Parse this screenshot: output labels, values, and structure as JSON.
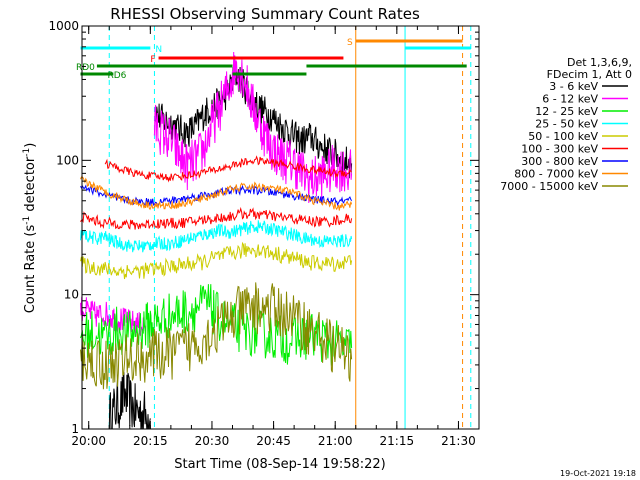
{
  "chart_data": {
    "type": "line",
    "title": "RHESSI Observing Summary Count Rates",
    "xlabel": "Start Time (08-Sep-14 19:58:22)",
    "ylabel": "Count Rate (s",
    "ylabel_sup": "-1",
    "ylabel_tail": " detector",
    "ylabel_end": ")",
    "date_stamp": "19-Oct-2021 19:18",
    "y_scale": "log",
    "ylim": [
      1,
      1000
    ],
    "xlim": [
      "19:58:22",
      "21:35:00"
    ],
    "x_ticks": [
      "20:00",
      "20:15",
      "20:30",
      "20:45",
      "21:00",
      "21:15",
      "21:30"
    ],
    "y_ticks": [
      "1",
      "10",
      "100",
      "1000"
    ],
    "grid": false,
    "legend": {
      "placement": "right",
      "header_lines": [
        "Det 1,3,6,9,",
        "FDecim 1, Att 0"
      ],
      "entries": [
        {
          "label": "3 - 6 keV",
          "color": "#000000"
        },
        {
          "label": "6 - 12 keV",
          "color": "#ff00ff"
        },
        {
          "label": "12 - 25 keV",
          "color": "#00ee00"
        },
        {
          "label": "25 - 50 keV",
          "color": "#00ffff"
        },
        {
          "label": "50 - 100 keV",
          "color": "#cccc00"
        },
        {
          "label": "100 - 300 keV",
          "color": "#ff0000"
        },
        {
          "label": "300 - 800 keV",
          "color": "#0000ff"
        },
        {
          "label": "800 - 7000 keV",
          "color": "#ff8800"
        },
        {
          "label": "7000 - 15000 keV",
          "color": "#888800"
        }
      ]
    },
    "series": [
      {
        "color": "#000000",
        "x": [
          "20:05",
          "20:07",
          "20:09",
          "20:11",
          "20:13",
          "20:15"
        ],
        "y": [
          1.2,
          1.5,
          1.8,
          1.4,
          1.3,
          1.2
        ],
        "jitter": 0.2
      },
      {
        "color": "#000000",
        "x": [
          "20:16",
          "20:18",
          "20:20",
          "20:22",
          "20:24",
          "20:26",
          "20:28",
          "20:30",
          "20:32",
          "20:34",
          "20:36",
          "20:38",
          "20:40",
          "20:42",
          "20:44",
          "20:46",
          "20:48",
          "20:50",
          "20:52",
          "20:54",
          "20:56",
          "20:58",
          "21:00",
          "21:02",
          "21:04"
        ],
        "y": [
          230,
          200,
          190,
          170,
          160,
          180,
          220,
          250,
          270,
          330,
          440,
          350,
          280,
          240,
          220,
          190,
          170,
          150,
          140,
          150,
          130,
          120,
          110,
          100,
          95
        ],
        "jitter": 0.12
      },
      {
        "color": "#ff00ff",
        "x": [
          "19:58",
          "20:00",
          "20:02",
          "20:04",
          "20:06",
          "20:08",
          "20:10",
          "20:12",
          "20:14"
        ],
        "y": [
          8,
          7.5,
          7,
          7.2,
          6.8,
          6.5,
          6.2,
          6.0,
          5.8
        ],
        "jitter": 0.1
      },
      {
        "color": "#ff00ff",
        "x": [
          "20:16",
          "20:18",
          "20:20",
          "20:22",
          "20:24",
          "20:26",
          "20:28",
          "20:30",
          "20:32",
          "20:34",
          "20:36",
          "20:38",
          "20:40",
          "20:42",
          "20:44",
          "20:46",
          "20:48",
          "20:50",
          "20:52",
          "20:54",
          "20:56",
          "20:58",
          "21:00",
          "21:02",
          "21:04"
        ],
        "y": [
          180,
          160,
          140,
          110,
          90,
          100,
          120,
          180,
          250,
          350,
          530,
          400,
          250,
          180,
          130,
          110,
          100,
          95,
          80,
          70,
          75,
          80,
          90,
          85,
          80
        ],
        "jitter": 0.18
      },
      {
        "color": "#00ee00",
        "x": [
          "19:58",
          "20:01",
          "20:04",
          "20:07",
          "20:10",
          "20:13",
          "20:15",
          "20:17",
          "20:20",
          "20:23",
          "20:26",
          "20:29",
          "20:31",
          "20:34",
          "20:37",
          "20:40",
          "20:43",
          "20:46",
          "20:49",
          "20:52",
          "20:55",
          "20:58",
          "21:01",
          "21:04"
        ],
        "y": [
          5,
          5.2,
          4.8,
          5.5,
          5,
          5.8,
          6,
          6.5,
          7,
          7.5,
          8,
          8.5,
          7,
          6,
          5.5,
          5.2,
          5,
          4.8,
          4.5,
          4.8,
          5,
          4.5,
          4.2,
          4
        ],
        "jitter": 0.18
      },
      {
        "color": "#00ffff",
        "x": [
          "19:58",
          "20:00",
          "20:02",
          "20:04"
        ],
        "y": [
          28,
          27,
          26,
          27
        ],
        "jitter": 0.05
      },
      {
        "color": "#00ffff",
        "x": [
          "20:04",
          "20:06",
          "20:08",
          "20:10",
          "20:12",
          "20:14",
          "20:16",
          "20:18",
          "20:20",
          "20:22",
          "20:24",
          "20:26",
          "20:28",
          "20:30",
          "20:32",
          "20:34",
          "20:36",
          "20:38",
          "20:40",
          "20:42",
          "20:44",
          "20:46",
          "20:48",
          "20:50",
          "20:52",
          "20:54",
          "20:56",
          "20:58",
          "21:00",
          "21:02",
          "21:04"
        ],
        "y": [
          27,
          25,
          24,
          23,
          23,
          23,
          24,
          24,
          24,
          25,
          26,
          27,
          28,
          29,
          30,
          29,
          30,
          31,
          32,
          32,
          31,
          30,
          29,
          28,
          26,
          26,
          25,
          25,
          25,
          25,
          26
        ],
        "jitter": 0.05
      },
      {
        "color": "#cccc00",
        "x": [
          "19:58",
          "20:01",
          "20:04",
          "20:07",
          "20:10",
          "20:13",
          "20:16",
          "20:19",
          "20:22",
          "20:25",
          "20:28",
          "20:31",
          "20:34",
          "20:37",
          "20:40",
          "20:43",
          "20:46",
          "20:49",
          "20:52",
          "20:55",
          "20:58",
          "21:01",
          "21:04"
        ],
        "y": [
          17,
          16,
          15.5,
          15,
          15,
          15,
          15.5,
          16,
          16.5,
          17,
          17.5,
          19,
          20,
          21,
          22,
          21,
          20,
          19,
          18,
          17,
          17,
          17,
          18
        ],
        "jitter": 0.06
      },
      {
        "color": "#ff0000",
        "x": [
          "19:58",
          "20:01",
          "20:04",
          "20:07",
          "20:10",
          "20:13",
          "20:16",
          "20:19",
          "20:22",
          "20:25",
          "20:28",
          "20:31",
          "20:34",
          "20:37",
          "20:40",
          "20:43",
          "20:46",
          "20:49",
          "20:52",
          "20:55",
          "20:58",
          "21:01",
          "21:04"
        ],
        "y": [
          38,
          36,
          34,
          34,
          33,
          33,
          34,
          34,
          34,
          35,
          36,
          37,
          38,
          40,
          40,
          39,
          38,
          37,
          36,
          35,
          35,
          36,
          37
        ],
        "jitter": 0.04
      },
      {
        "color": "#ff0000",
        "x": [
          "20:04",
          "20:07",
          "20:10",
          "20:13",
          "20:16",
          "20:19",
          "20:22",
          "20:25",
          "20:28",
          "20:31",
          "20:34",
          "20:37",
          "20:40",
          "20:43",
          "20:46",
          "20:49",
          "20:52",
          "20:55",
          "20:58",
          "21:01",
          "21:04"
        ],
        "y": [
          95,
          88,
          82,
          78,
          76,
          75,
          76,
          78,
          82,
          85,
          90,
          95,
          100,
          98,
          95,
          92,
          88,
          85,
          82,
          80,
          82
        ],
        "jitter": 0.03
      },
      {
        "color": "#0000ff",
        "x": [
          "19:58",
          "20:01",
          "20:04",
          "20:07",
          "20:10",
          "20:13",
          "20:16",
          "20:19",
          "20:22",
          "20:25",
          "20:28",
          "20:31",
          "20:34",
          "20:37",
          "20:40",
          "20:43",
          "20:46",
          "20:49",
          "20:52",
          "20:55",
          "20:58",
          "21:01",
          "21:04"
        ],
        "y": [
          65,
          60,
          55,
          52,
          50,
          49,
          49,
          50,
          51,
          53,
          55,
          57,
          59,
          60,
          60,
          59,
          57,
          55,
          53,
          51,
          50,
          49,
          50
        ],
        "jitter": 0.03
      },
      {
        "color": "#ff8800",
        "x": [
          "19:58",
          "20:01",
          "20:04",
          "20:07",
          "20:10",
          "20:13",
          "20:16",
          "20:19",
          "20:22",
          "20:25",
          "20:28",
          "20:31",
          "20:34",
          "20:37",
          "20:40",
          "20:43",
          "20:46",
          "20:49",
          "20:52",
          "20:55",
          "20:58",
          "21:01",
          "21:04"
        ],
        "y": [
          72,
          65,
          58,
          54,
          50,
          47,
          46,
          46,
          47,
          49,
          52,
          56,
          60,
          63,
          64,
          63,
          61,
          58,
          54,
          50,
          47,
          45,
          47
        ],
        "jitter": 0.03
      },
      {
        "color": "#888800",
        "x": [
          "19:58",
          "20:01",
          "20:04",
          "20:07",
          "20:10",
          "20:13",
          "20:16",
          "20:19",
          "20:22",
          "20:25",
          "20:28",
          "20:31",
          "20:34",
          "20:37",
          "20:40",
          "20:43",
          "20:46",
          "20:49",
          "20:52",
          "20:55",
          "20:58",
          "21:01",
          "21:04"
        ],
        "y": [
          3.5,
          3.2,
          3,
          3.2,
          3.3,
          3.4,
          3.5,
          3.6,
          3.8,
          4.2,
          4.8,
          5.5,
          6.5,
          7.5,
          8,
          8,
          7.5,
          7,
          6,
          5.2,
          4.5,
          3.8,
          3.3
        ],
        "jitter": 0.2
      }
    ],
    "annotations": [
      {
        "text": "N",
        "color": "#00ffff",
        "bars": [
          [
            "19:58",
            "20:15"
          ],
          [
            "21:17",
            "21:33"
          ]
        ]
      },
      {
        "text": "F",
        "color": "#ff0000",
        "bars": [
          [
            "20:17",
            "21:02"
          ]
        ]
      },
      {
        "text": "S",
        "color": "#ff8800",
        "bars": [
          [
            "21:05",
            "21:31"
          ]
        ]
      },
      {
        "text": "RD0",
        "color": "#008800",
        "bars": [
          [
            "20:02",
            "20:35"
          ],
          [
            "20:53",
            "21:32"
          ]
        ]
      },
      {
        "text": "RD6",
        "color": "#008800",
        "bars": [
          [
            "19:58",
            "20:06"
          ],
          [
            "20:35",
            "20:53"
          ]
        ]
      }
    ],
    "vlines": [
      {
        "x": "20:05",
        "color": "#00ffff",
        "style": "dashed"
      },
      {
        "x": "20:16",
        "color": "#00ffff",
        "style": "dashed"
      },
      {
        "x": "21:05",
        "color": "#ff8800",
        "style": "solid"
      },
      {
        "x": "21:17",
        "color": "#00ffff",
        "style": "solid"
      },
      {
        "x": "21:31",
        "color": "#ff8800",
        "style": "dashed"
      },
      {
        "x": "21:33",
        "color": "#00ffff",
        "style": "dashed"
      }
    ]
  }
}
